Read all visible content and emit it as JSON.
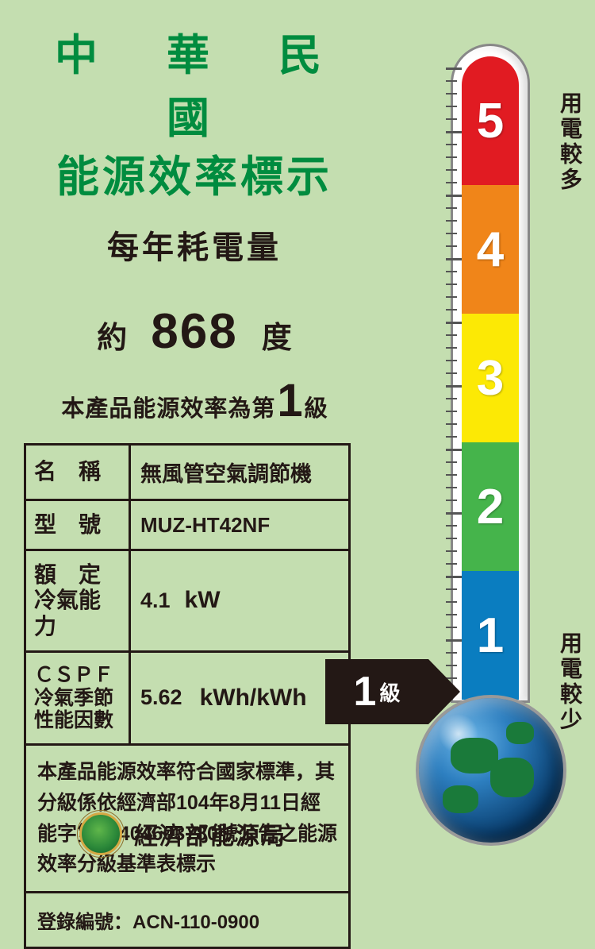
{
  "header": {
    "title1": "中 華 民 國",
    "title2": "能源效率標示",
    "subtitle": "每年耗電量"
  },
  "consumption": {
    "prefix": "約",
    "value": "868",
    "suffix": "度"
  },
  "grade_line": {
    "prefix": "本產品能源效率為第",
    "num": "1",
    "suffix": "級"
  },
  "table": {
    "name_label": "名　稱",
    "name_value": "無風管空氣調節機",
    "model_label": "型　號",
    "model_value": "MUZ-HT42NF",
    "capacity_label1": "額　定",
    "capacity_label2": "冷氣能力",
    "capacity_value": "4.1",
    "capacity_unit": "kW",
    "cspf_label1": "ＣＳＰＦ",
    "cspf_label2": "冷氣季節",
    "cspf_label3": "性能因數",
    "cspf_value": "5.62",
    "cspf_unit": "kWh/kWh",
    "compliance": "本產品能源效率符合國家標準，其分級係依經濟部104年8月11日經能字第10404603780號公告之能源效率分級基準表標示",
    "reg_label": "登錄編號：",
    "reg_value": "ACN-110-0900"
  },
  "footer": {
    "agency": "經濟部能源局"
  },
  "thermo": {
    "segments": [
      {
        "num": "5",
        "color": "#e11b22"
      },
      {
        "num": "4",
        "color": "#f08519"
      },
      {
        "num": "3",
        "color": "#fce905"
      },
      {
        "num": "2",
        "color": "#45b44b"
      },
      {
        "num": "1",
        "color": "#0a7dc0"
      }
    ],
    "label_top": "用電較多",
    "label_bottom": "用電較少",
    "bulb_colors": {
      "highlight": "#6fb8e8",
      "mid": "#2d7fc0",
      "dark": "#0a3f70"
    },
    "background": "#c4deb0",
    "border_color": "#231815"
  },
  "arrow": {
    "num": "1",
    "suffix": "級"
  }
}
